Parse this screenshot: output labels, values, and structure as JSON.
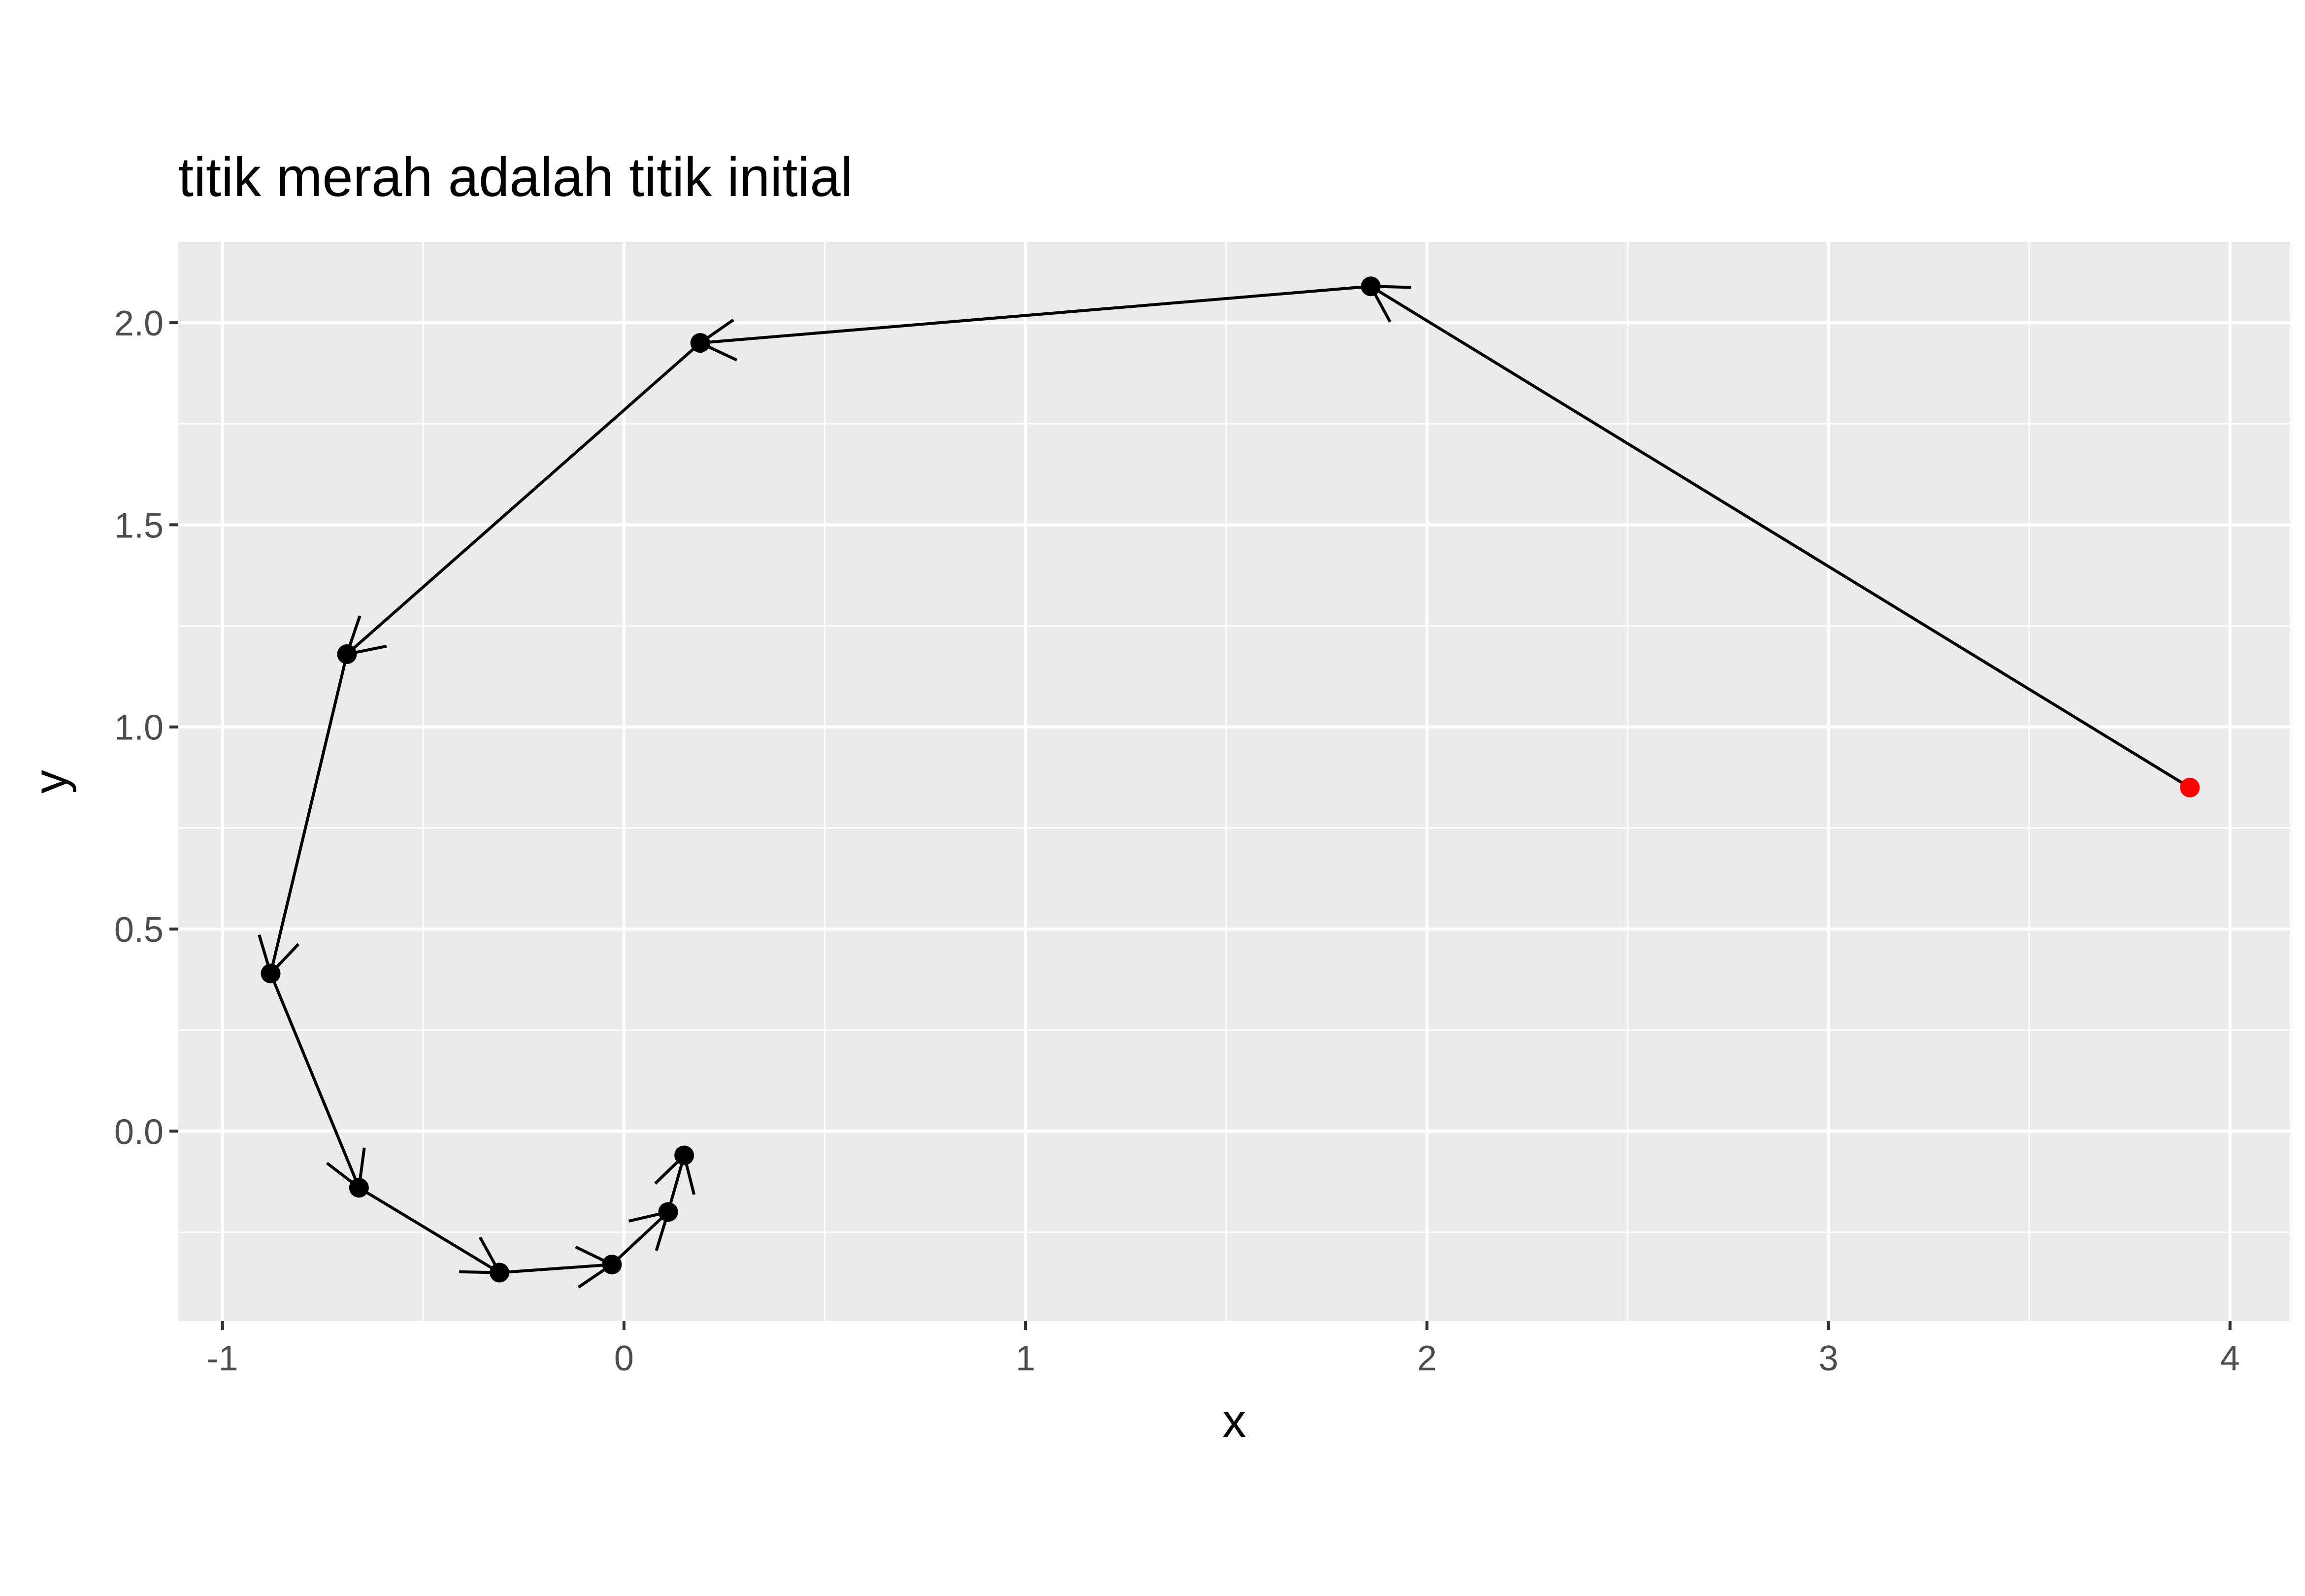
{
  "chart_data": {
    "type": "line",
    "title": "titik merah adalah titik initial",
    "xlabel": "x",
    "ylabel": "y",
    "xlim": [
      -1.11,
      4.15
    ],
    "ylim": [
      -0.47,
      2.2
    ],
    "x_ticks": [
      -1,
      0,
      1,
      2,
      3,
      4
    ],
    "x_tick_labels": [
      "-1",
      "0",
      "1",
      "2",
      "3",
      "4"
    ],
    "y_ticks": [
      0.0,
      0.5,
      1.0,
      1.5,
      2.0
    ],
    "y_tick_labels": [
      "0.0",
      "0.5",
      "1.0",
      "1.5",
      "2.0"
    ],
    "grid": true,
    "legend": "none",
    "series": [
      {
        "points": [
          {
            "x": 3.9,
            "y": 0.85
          },
          {
            "x": 1.86,
            "y": 2.09
          },
          {
            "x": 0.19,
            "y": 1.95
          },
          {
            "x": -0.69,
            "y": 1.18
          },
          {
            "x": -0.88,
            "y": 0.39
          },
          {
            "x": -0.66,
            "y": -0.14
          },
          {
            "x": -0.31,
            "y": -0.35
          },
          {
            "x": -0.03,
            "y": -0.33
          },
          {
            "x": 0.11,
            "y": -0.2
          },
          {
            "x": 0.15,
            "y": -0.06
          }
        ],
        "initial_point_index": 0,
        "colors": {
          "initial": "#ff0000",
          "point": "#000000",
          "line": "#000000"
        }
      }
    ],
    "colors": {
      "panel": "#ebebeb",
      "grid": "#ffffff",
      "tick": "#333333"
    }
  }
}
